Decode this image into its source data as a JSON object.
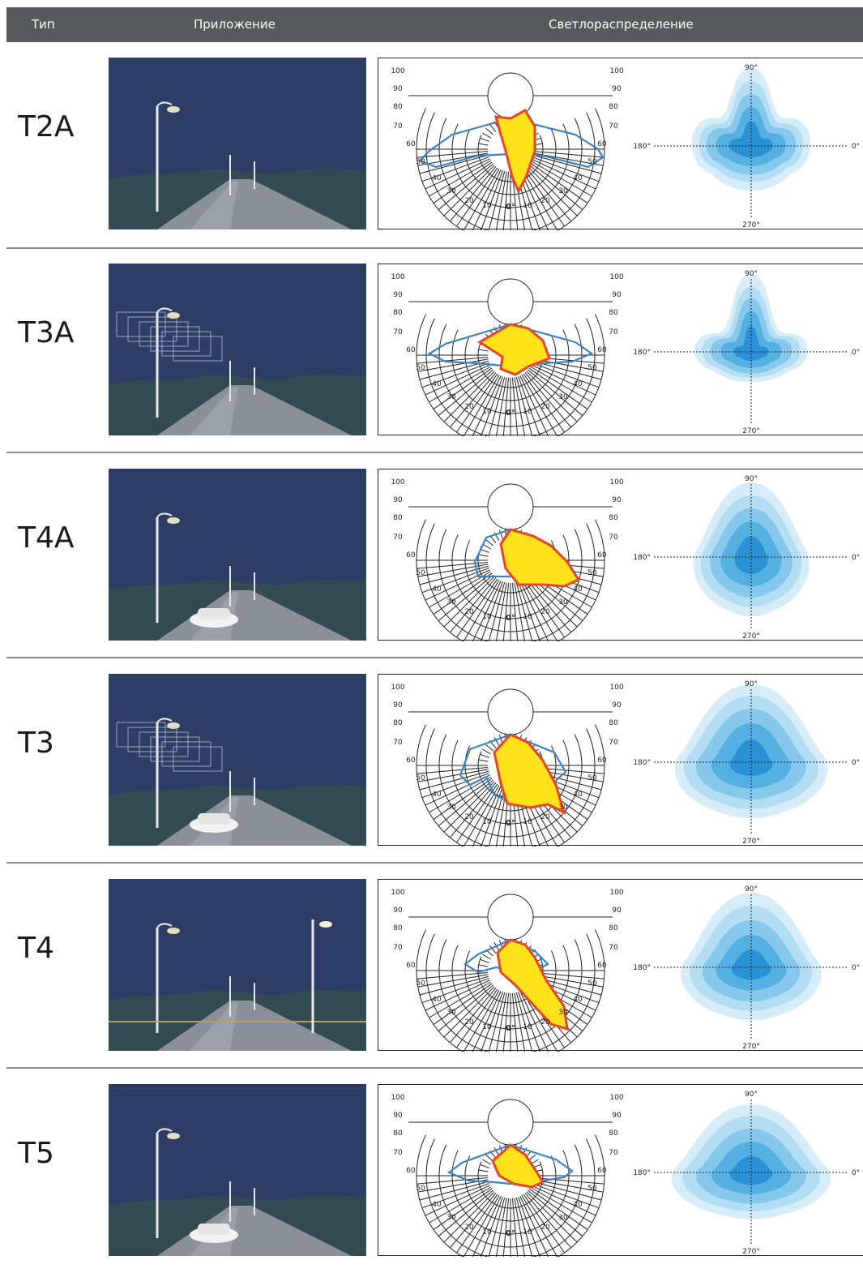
{
  "header": {
    "col_type": "Тип",
    "col_application": "Приложение",
    "col_distribution": "Светлораспределение"
  },
  "polar_labels": {
    "left": [
      "100",
      "90",
      "80",
      "70",
      "60",
      "50",
      "40",
      "30",
      "20",
      "10"
    ],
    "right": [
      "100",
      "90",
      "80",
      "70",
      "60",
      "50",
      "40",
      "30",
      "20",
      "10"
    ],
    "center": "0°"
  },
  "iso_labels": {
    "top": "90°",
    "bottom": "270°",
    "left": "180°",
    "right": "0°"
  },
  "colors": {
    "header_bg": "#58595b",
    "sky": "#2e3d66",
    "curve_red": "#e8432b",
    "curve_blue": "#3b82c4",
    "fill_yellow": "#ffe21a",
    "iso_light": "#cfe9f8",
    "iso_dark": "#1f8ad2"
  },
  "rows": [
    {
      "type": "T2A",
      "scene": "path-cyclist"
    },
    {
      "type": "T3A",
      "scene": "road-buildings"
    },
    {
      "type": "T4A",
      "scene": "parking-lot"
    },
    {
      "type": "T3",
      "scene": "street-houses"
    },
    {
      "type": "T4",
      "scene": "bridge-road"
    },
    {
      "type": "T5",
      "scene": "highway"
    }
  ]
}
